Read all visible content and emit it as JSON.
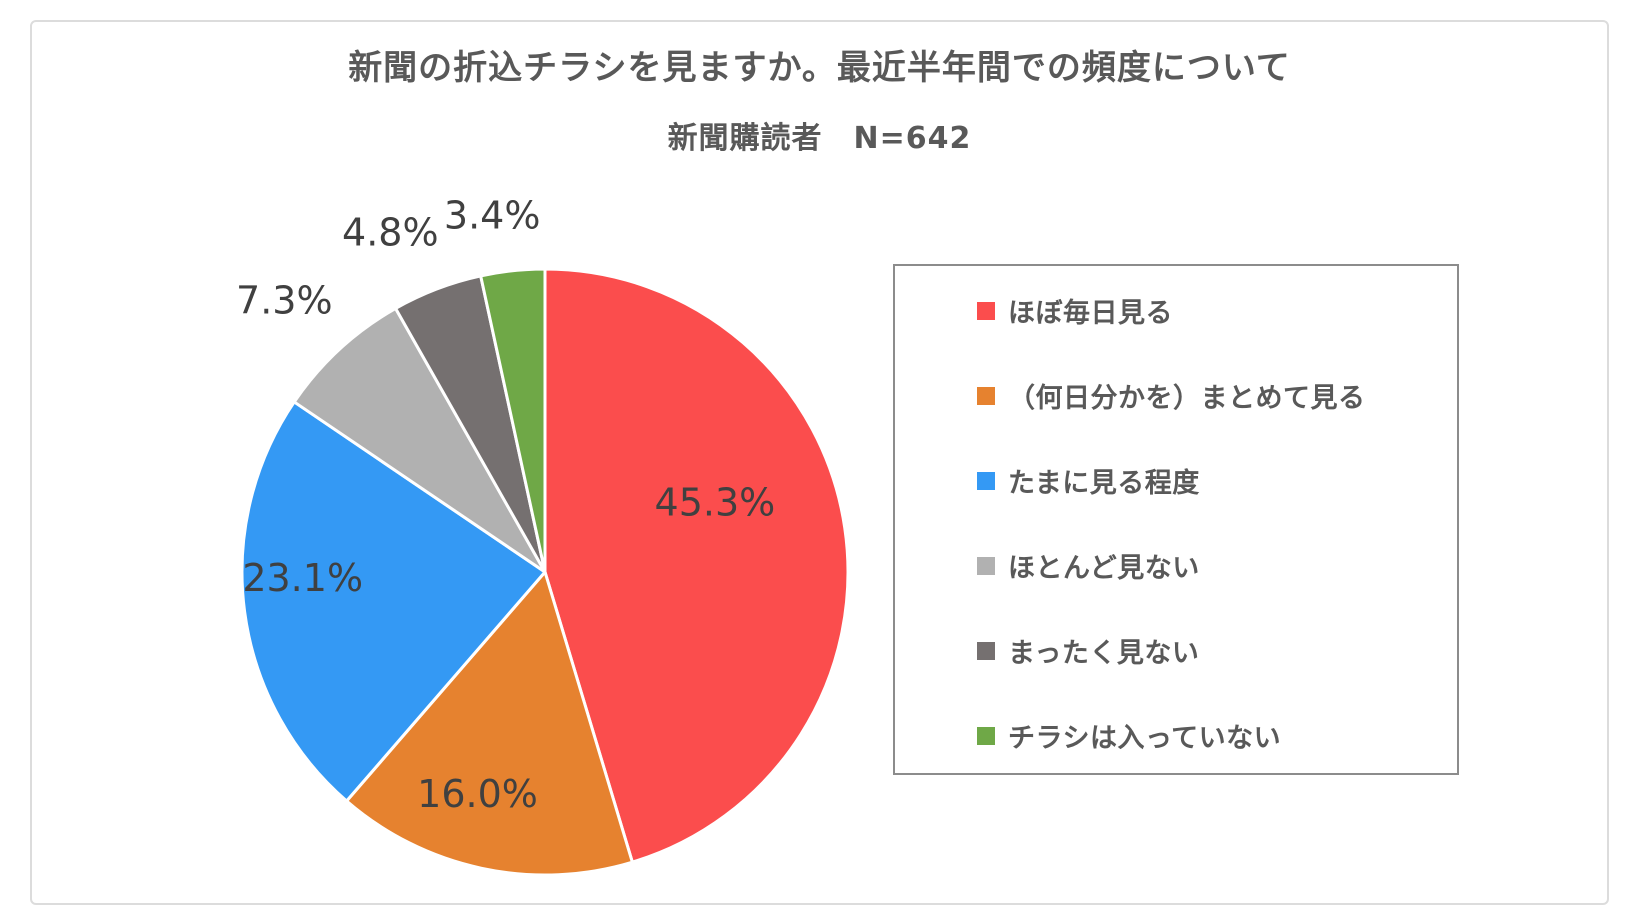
{
  "header": {
    "title": "新聞の折込チラシを見ますか。最近半年間での頻度について",
    "subtitle": "新聞購読者　N=642"
  },
  "chart_data": {
    "type": "pie",
    "title": "新聞の折込チラシを見ますか。最近半年間での頻度について",
    "subtitle": "新聞購読者　N=642",
    "group": "新聞購読者",
    "sample_size": 642,
    "unit": "%",
    "start_angle_deg": 0,
    "direction": "clockwise",
    "legend_position": "right",
    "slices": [
      {
        "label": "ほぼ毎日見る",
        "value": 45.3,
        "label_text": "45.3%",
        "color": "#FB4D4D",
        "label_placement": "inside"
      },
      {
        "label": "（何日分かを）まとめて見る",
        "value": 16.0,
        "label_text": "16.0%",
        "color": "#E6822F",
        "label_placement": "inside"
      },
      {
        "label": "たまに見る程度",
        "value": 23.1,
        "label_text": "23.1%",
        "color": "#3499F4",
        "label_placement": "inside"
      },
      {
        "label": "ほとんど見ない",
        "value": 7.3,
        "label_text": "7.3%",
        "color": "#B1B1B1",
        "label_placement": "outside"
      },
      {
        "label": "まったく見ない",
        "value": 4.8,
        "label_text": "4.8%",
        "color": "#757070",
        "label_placement": "outside"
      },
      {
        "label": "チラシは入っていない",
        "value": 3.4,
        "label_text": "3.4%",
        "color": "#6FA847",
        "label_placement": "outside"
      }
    ],
    "colors": {
      "title_text": "#595959",
      "data_label_text": "#404040",
      "legend_border": "#8c8c8c",
      "container_border": "#dcdcdc",
      "slice_separator": "#ffffff"
    }
  }
}
